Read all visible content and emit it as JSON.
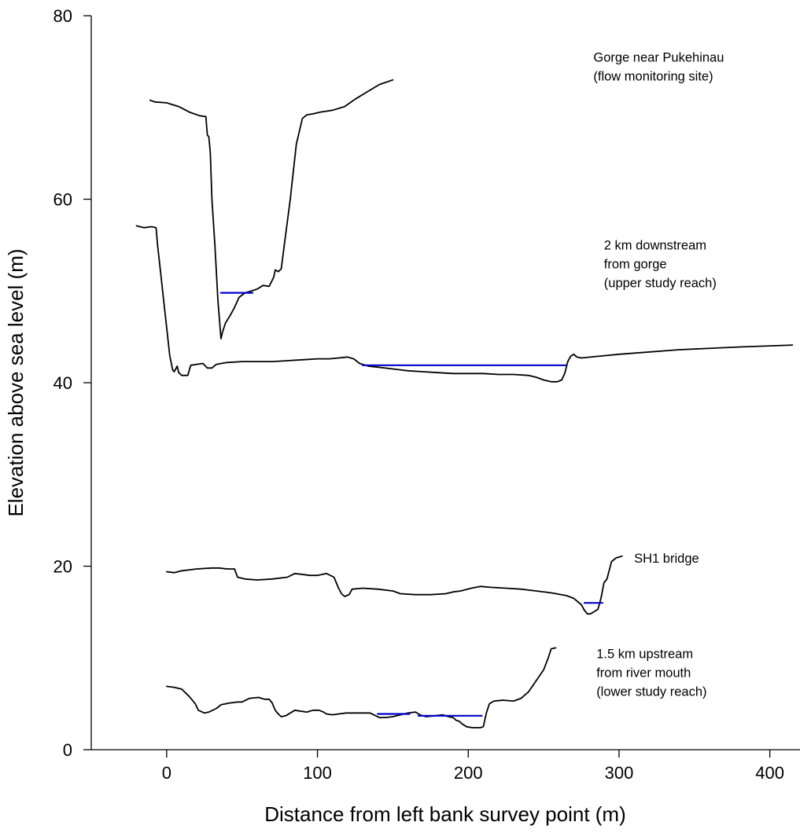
{
  "chart_data": {
    "type": "line",
    "xlabel": "Distance from left bank survey point  (m)",
    "ylabel": "Elevation above sea level (m)",
    "xlim": [
      -50,
      420
    ],
    "ylim": [
      0,
      80
    ],
    "x_ticks": [
      0,
      100,
      200,
      300,
      400
    ],
    "y_ticks": [
      0,
      20,
      40,
      60,
      80
    ],
    "grid": false,
    "colors": {
      "profile": "#000000",
      "water": "#0000cc"
    },
    "annotations": [
      {
        "key": "gorge",
        "x": 283,
        "y": 75,
        "lines": [
          "Gorge near Pukehinau",
          "(flow monitoring site)"
        ]
      },
      {
        "key": "upper",
        "x": 290,
        "y": 54.5,
        "lines": [
          "2 km downstream",
          "from gorge",
          "(upper study reach)"
        ]
      },
      {
        "key": "sh1",
        "x": 310,
        "y": 20.4,
        "lines": [
          "SH1 bridge"
        ]
      },
      {
        "key": "lower",
        "x": 285,
        "y": 10,
        "lines": [
          "1.5 km upstream",
          "from river mouth",
          "(lower study reach)"
        ]
      }
    ],
    "series": [
      {
        "key": "gorge_profile",
        "role": "profile",
        "points": [
          [
            -11,
            70.8
          ],
          [
            -8,
            70.6
          ],
          [
            0,
            70.5
          ],
          [
            8,
            70.1
          ],
          [
            15,
            69.5
          ],
          [
            22,
            69.1
          ],
          [
            26,
            69
          ],
          [
            27,
            67
          ],
          [
            28,
            66.8
          ],
          [
            29,
            65
          ],
          [
            30,
            60
          ],
          [
            32,
            55
          ],
          [
            33,
            52
          ],
          [
            34,
            49
          ],
          [
            35,
            47
          ],
          [
            36,
            44.8
          ],
          [
            37,
            45.5
          ],
          [
            39,
            46.5
          ],
          [
            42,
            47.3
          ],
          [
            45,
            48.2
          ],
          [
            48,
            49.3
          ],
          [
            52,
            49.8
          ],
          [
            56,
            50
          ],
          [
            60,
            50.2
          ],
          [
            64,
            50.6
          ],
          [
            68,
            50.5
          ],
          [
            71,
            51.5
          ],
          [
            72,
            52.3
          ],
          [
            74,
            52.1
          ],
          [
            76,
            52.4
          ],
          [
            78,
            55
          ],
          [
            82,
            60
          ],
          [
            86,
            66
          ],
          [
            90,
            68.8
          ],
          [
            93,
            69.2
          ],
          [
            97,
            69.3
          ],
          [
            102,
            69.5
          ],
          [
            110,
            69.7
          ],
          [
            118,
            70.1
          ],
          [
            125,
            70.9
          ],
          [
            133,
            71.7
          ],
          [
            141,
            72.5
          ],
          [
            150,
            73
          ]
        ]
      },
      {
        "key": "upper_profile",
        "role": "profile",
        "points": [
          [
            -20,
            57.1
          ],
          [
            -15,
            56.9
          ],
          [
            -10,
            57
          ],
          [
            -7,
            56.9
          ],
          [
            -6,
            55
          ],
          [
            -4,
            52
          ],
          [
            -2,
            49
          ],
          [
            0,
            46
          ],
          [
            2,
            43
          ],
          [
            4,
            41.4
          ],
          [
            5,
            41.2
          ],
          [
            7,
            41.8
          ],
          [
            8,
            41.1
          ],
          [
            10,
            40.8
          ],
          [
            14,
            40.8
          ],
          [
            16,
            41.9
          ],
          [
            20,
            42
          ],
          [
            24,
            42.1
          ],
          [
            27,
            41.6
          ],
          [
            30,
            41.6
          ],
          [
            33,
            42
          ],
          [
            40,
            42.2
          ],
          [
            50,
            42.3
          ],
          [
            60,
            42.3
          ],
          [
            70,
            42.3
          ],
          [
            80,
            42.4
          ],
          [
            90,
            42.5
          ],
          [
            100,
            42.6
          ],
          [
            108,
            42.6
          ],
          [
            114,
            42.7
          ],
          [
            120,
            42.8
          ],
          [
            124,
            42.6
          ],
          [
            128,
            42.1
          ],
          [
            134,
            41.8
          ],
          [
            140,
            41.7
          ],
          [
            150,
            41.5
          ],
          [
            160,
            41.3
          ],
          [
            170,
            41.2
          ],
          [
            180,
            41.1
          ],
          [
            190,
            41
          ],
          [
            200,
            41
          ],
          [
            210,
            41
          ],
          [
            220,
            40.9
          ],
          [
            230,
            40.9
          ],
          [
            240,
            40.8
          ],
          [
            245,
            40.6
          ],
          [
            250,
            40.3
          ],
          [
            255,
            40.1
          ],
          [
            259,
            40.1
          ],
          [
            262,
            40.3
          ],
          [
            264,
            41
          ],
          [
            266,
            42.3
          ],
          [
            268,
            42.9
          ],
          [
            270,
            43.1
          ],
          [
            272,
            42.8
          ],
          [
            275,
            42.7
          ],
          [
            300,
            43.1
          ],
          [
            340,
            43.6
          ],
          [
            380,
            43.9
          ],
          [
            415,
            44.1
          ]
        ]
      },
      {
        "key": "sh1_profile",
        "role": "profile",
        "points": [
          [
            0,
            19.4
          ],
          [
            5,
            19.3
          ],
          [
            10,
            19.5
          ],
          [
            20,
            19.7
          ],
          [
            30,
            19.8
          ],
          [
            35,
            19.8
          ],
          [
            40,
            19.7
          ],
          [
            45,
            19.7
          ],
          [
            47,
            18.8
          ],
          [
            52,
            18.6
          ],
          [
            60,
            18.5
          ],
          [
            70,
            18.6
          ],
          [
            80,
            18.8
          ],
          [
            85,
            19.2
          ],
          [
            95,
            19
          ],
          [
            100,
            19
          ],
          [
            106,
            19.2
          ],
          [
            111,
            18.8
          ],
          [
            114,
            17.6
          ],
          [
            116,
            17
          ],
          [
            118,
            16.7
          ],
          [
            121,
            16.9
          ],
          [
            123,
            17.5
          ],
          [
            130,
            17.6
          ],
          [
            140,
            17.5
          ],
          [
            150,
            17.3
          ],
          [
            155,
            17
          ],
          [
            165,
            16.9
          ],
          [
            175,
            16.9
          ],
          [
            185,
            17
          ],
          [
            190,
            17.2
          ],
          [
            195,
            17.3
          ],
          [
            202,
            17.6
          ],
          [
            208,
            17.8
          ],
          [
            215,
            17.7
          ],
          [
            225,
            17.6
          ],
          [
            235,
            17.5
          ],
          [
            245,
            17.3
          ],
          [
            255,
            17.1
          ],
          [
            265,
            16.8
          ],
          [
            270,
            16.5
          ],
          [
            275,
            15.8
          ],
          [
            277,
            15.2
          ],
          [
            279,
            14.8
          ],
          [
            281,
            14.8
          ],
          [
            283,
            15
          ],
          [
            286,
            15.3
          ],
          [
            288,
            16.5
          ],
          [
            290,
            18.2
          ],
          [
            292,
            18.6
          ],
          [
            295,
            20.5
          ],
          [
            298,
            20.9
          ],
          [
            302,
            21.1
          ]
        ]
      },
      {
        "key": "lower_profile",
        "role": "profile",
        "points": [
          [
            0,
            6.9
          ],
          [
            5,
            6.8
          ],
          [
            10,
            6.6
          ],
          [
            15,
            5.8
          ],
          [
            19,
            5
          ],
          [
            21,
            4.3
          ],
          [
            25,
            4
          ],
          [
            28,
            4.1
          ],
          [
            33,
            4.5
          ],
          [
            36,
            4.9
          ],
          [
            42,
            5.1
          ],
          [
            47,
            5.2
          ],
          [
            50,
            5.2
          ],
          [
            55,
            5.6
          ],
          [
            61,
            5.7
          ],
          [
            65,
            5.5
          ],
          [
            68,
            5.5
          ],
          [
            70,
            5.1
          ],
          [
            72,
            4.3
          ],
          [
            74,
            3.9
          ],
          [
            76,
            3.6
          ],
          [
            79,
            3.7
          ],
          [
            85,
            4.3
          ],
          [
            89,
            4.2
          ],
          [
            93,
            4.1
          ],
          [
            97,
            4.3
          ],
          [
            101,
            4.3
          ],
          [
            104,
            4.1
          ],
          [
            106,
            3.9
          ],
          [
            110,
            3.8
          ],
          [
            114,
            3.9
          ],
          [
            119,
            4
          ],
          [
            125,
            4
          ],
          [
            130,
            4
          ],
          [
            135,
            4
          ],
          [
            141,
            3.5
          ],
          [
            145,
            3.5
          ],
          [
            150,
            3.6
          ],
          [
            155,
            3.8
          ],
          [
            160,
            4
          ],
          [
            165,
            4.1
          ],
          [
            168,
            3.8
          ],
          [
            172,
            3.6
          ],
          [
            178,
            3.7
          ],
          [
            183,
            3.8
          ],
          [
            187,
            3.6
          ],
          [
            190,
            3.5
          ],
          [
            192,
            3.2
          ],
          [
            194,
            3.1
          ],
          [
            196,
            2.8
          ],
          [
            199,
            2.5
          ],
          [
            203,
            2.4
          ],
          [
            208,
            2.4
          ],
          [
            210,
            2.5
          ],
          [
            212,
            4
          ],
          [
            214,
            5
          ],
          [
            217,
            5.3
          ],
          [
            223,
            5.4
          ],
          [
            230,
            5.3
          ],
          [
            235,
            5.6
          ],
          [
            240,
            6.3
          ],
          [
            245,
            7.5
          ],
          [
            250,
            8.7
          ],
          [
            253,
            10
          ],
          [
            255,
            11
          ],
          [
            258,
            11.1
          ]
        ]
      },
      {
        "key": "gorge_water",
        "role": "water",
        "points": [
          [
            36,
            49.8
          ],
          [
            57,
            49.8
          ]
        ]
      },
      {
        "key": "upper_water",
        "role": "water",
        "points": [
          [
            130,
            41.9
          ],
          [
            265,
            41.9
          ]
        ]
      },
      {
        "key": "sh1_water",
        "role": "water",
        "points": [
          [
            277,
            16.0
          ],
          [
            289,
            16.0
          ]
        ]
      },
      {
        "key": "lower_water_1",
        "role": "water",
        "points": [
          [
            140,
            3.9
          ],
          [
            161,
            3.9
          ]
        ]
      },
      {
        "key": "lower_water_2",
        "role": "water",
        "points": [
          [
            167,
            3.7
          ],
          [
            209,
            3.7
          ]
        ]
      }
    ]
  }
}
